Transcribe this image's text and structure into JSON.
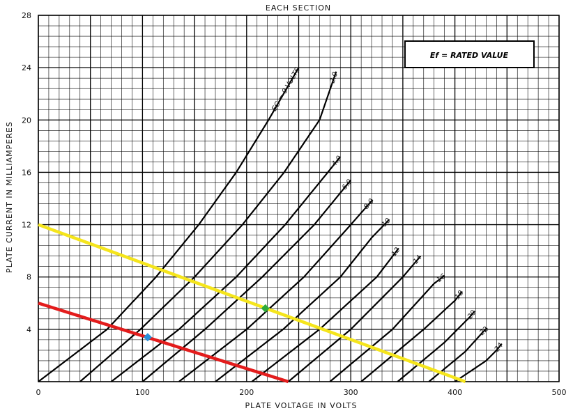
{
  "chart_data": {
    "type": "line",
    "title": "EACH SECTION",
    "xlabel": "PLATE VOLTAGE IN VOLTS",
    "ylabel": "PLATE CURRENT IN MILLIAMPERES",
    "xlim": [
      0,
      500
    ],
    "ylim": [
      0,
      28
    ],
    "xticks": [
      "0",
      "100",
      "200",
      "300",
      "400",
      "500"
    ],
    "yticks": [
      "4",
      "8",
      "12",
      "16",
      "20",
      "24",
      "28"
    ],
    "grid": true,
    "annotation": "Ef = RATED VALUE",
    "curve_labels": [
      "EG = 0 VOLTS",
      "-2.0",
      "-4.0",
      "-6.0",
      "-8.0",
      "-10",
      "-12",
      "-14",
      "-16",
      "-18",
      "-20",
      "-22",
      "-24"
    ],
    "curves": [
      {
        "grid_voltage": 0,
        "x": [
          0,
          66,
          113,
          154,
          190,
          221,
          250
        ],
        "y": [
          0,
          4,
          8,
          12,
          16,
          20,
          24
        ]
      },
      {
        "grid_voltage": -2,
        "x": [
          40,
          98,
          150,
          196,
          236,
          270,
          286
        ],
        "y": [
          0,
          4,
          8,
          12,
          16,
          20,
          23.7
        ]
      },
      {
        "grid_voltage": -4,
        "x": [
          70,
          135,
          190,
          237,
          278,
          290
        ],
        "y": [
          0,
          4,
          8,
          12,
          16,
          17.2
        ]
      },
      {
        "grid_voltage": -6,
        "x": [
          100,
          160,
          215,
          265,
          300
        ],
        "y": [
          0,
          4,
          8,
          12,
          15.4
        ]
      },
      {
        "grid_voltage": -8,
        "x": [
          135,
          200,
          255,
          300,
          321
        ],
        "y": [
          0,
          4,
          8,
          12,
          13.9
        ]
      },
      {
        "grid_voltage": -10,
        "x": [
          170,
          235,
          290,
          320,
          337
        ],
        "y": [
          0,
          4,
          8,
          11,
          12.4
        ]
      },
      {
        "grid_voltage": -12,
        "x": [
          205,
          270,
          325,
          346
        ],
        "y": [
          0,
          4,
          8,
          10.2
        ]
      },
      {
        "grid_voltage": -14,
        "x": [
          240,
          300,
          350,
          367
        ],
        "y": [
          0,
          4,
          8,
          9.6
        ]
      },
      {
        "grid_voltage": -16,
        "x": [
          280,
          340,
          380,
          390
        ],
        "y": [
          0,
          4,
          7.5,
          8.1
        ]
      },
      {
        "grid_voltage": -18,
        "x": [
          310,
          370,
          400,
          407
        ],
        "y": [
          0,
          4,
          6.2,
          6.9
        ]
      },
      {
        "grid_voltage": -20,
        "x": [
          345,
          390,
          415,
          419
        ],
        "y": [
          0,
          3,
          5,
          5.4
        ]
      },
      {
        "grid_voltage": -22,
        "x": [
          375,
          410,
          427,
          431
        ],
        "y": [
          0,
          2.3,
          3.8,
          4.1
        ]
      },
      {
        "grid_voltage": -24,
        "x": [
          400,
          430,
          440,
          445
        ],
        "y": [
          0,
          1.6,
          2.4,
          2.9
        ]
      }
    ],
    "load_lines": [
      {
        "color": "#f5e51c",
        "x": [
          0,
          410
        ],
        "y": [
          12,
          0
        ]
      },
      {
        "color": "#e31c1c",
        "x": [
          0,
          240
        ],
        "y": [
          6,
          0
        ]
      }
    ],
    "points": [
      {
        "color": "#2eaa3a",
        "x": 218,
        "y": 5.6
      },
      {
        "color": "#2a8fd8",
        "x": 105,
        "y": 3.4
      }
    ]
  }
}
